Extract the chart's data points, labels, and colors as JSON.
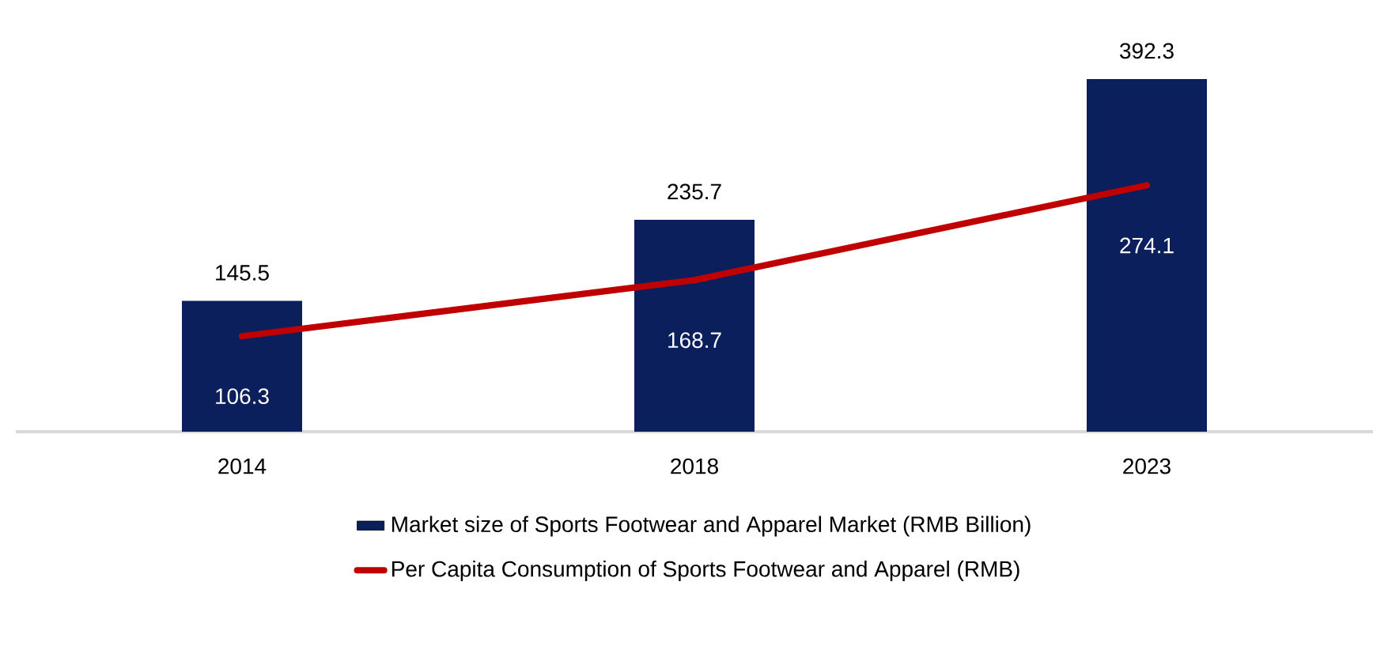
{
  "chart_data": {
    "type": "bar",
    "categories": [
      "2014",
      "2018",
      "2023"
    ],
    "tick_labels": "x",
    "data_labels": true,
    "legend": "bottom",
    "series": [
      {
        "name": "Market size of Sports Footwear and Apparel Market (RMB Billion)",
        "color": "#0b1f5c",
        "values": [
          145.5,
          235.7,
          392.3
        ]
      },
      {
        "type": "line",
        "name": "Per Capita Consumption of Sports Footwear and Apparel (RMB)",
        "color": "#c00000",
        "values": [
          106.3,
          168.7,
          274.1
        ]
      }
    ]
  }
}
